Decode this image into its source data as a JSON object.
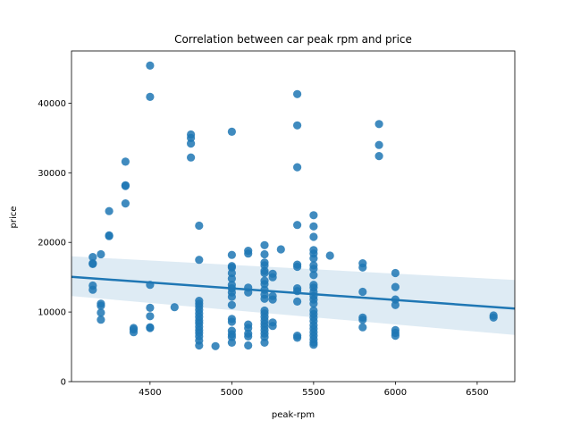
{
  "chart_data": {
    "type": "scatter",
    "title": "Correlation between car peak rpm and price",
    "xlabel": "peak-rpm",
    "ylabel": "price",
    "xlim": [
      4020,
      6730
    ],
    "ylim": [
      0,
      47500
    ],
    "xticks": [
      4500,
      5000,
      5500,
      6000,
      6500
    ],
    "yticks": [
      0,
      10000,
      20000,
      30000,
      40000
    ],
    "grid": false,
    "point_color": "#1f77b4",
    "points": [
      [
        4150,
        17900
      ],
      [
        4150,
        16900
      ],
      [
        4150,
        17000
      ],
      [
        4150,
        13800
      ],
      [
        4150,
        13200
      ],
      [
        4200,
        18300
      ],
      [
        4200,
        11200
      ],
      [
        4200,
        10900
      ],
      [
        4200,
        9900
      ],
      [
        4200,
        8900
      ],
      [
        4250,
        24500
      ],
      [
        4250,
        21000
      ],
      [
        4250,
        20900
      ],
      [
        4350,
        31600
      ],
      [
        4350,
        28200
      ],
      [
        4350,
        28100
      ],
      [
        4350,
        25600
      ],
      [
        4400,
        7700
      ],
      [
        4400,
        7500
      ],
      [
        4400,
        7100
      ],
      [
        4500,
        45400
      ],
      [
        4500,
        40900
      ],
      [
        4500,
        13900
      ],
      [
        4500,
        10600
      ],
      [
        4500,
        9400
      ],
      [
        4500,
        7800
      ],
      [
        4500,
        7700
      ],
      [
        4650,
        10700
      ],
      [
        4750,
        35500
      ],
      [
        4750,
        35000
      ],
      [
        4750,
        34200
      ],
      [
        4750,
        32200
      ],
      [
        4800,
        22400
      ],
      [
        4800,
        17500
      ],
      [
        4800,
        11600
      ],
      [
        4800,
        11200
      ],
      [
        4800,
        10800
      ],
      [
        4800,
        10300
      ],
      [
        4800,
        9800
      ],
      [
        4800,
        9300
      ],
      [
        4800,
        8800
      ],
      [
        4800,
        8400
      ],
      [
        4800,
        7900
      ],
      [
        4800,
        7400
      ],
      [
        4800,
        7000
      ],
      [
        4800,
        6500
      ],
      [
        4800,
        5900
      ],
      [
        4800,
        5200
      ],
      [
        4900,
        5100
      ],
      [
        5000,
        35900
      ],
      [
        5000,
        18200
      ],
      [
        5000,
        16600
      ],
      [
        5000,
        16400
      ],
      [
        5000,
        15600
      ],
      [
        5000,
        14800
      ],
      [
        5000,
        13900
      ],
      [
        5000,
        13400
      ],
      [
        5000,
        12800
      ],
      [
        5000,
        12200
      ],
      [
        5000,
        11000
      ],
      [
        5000,
        9000
      ],
      [
        5000,
        8600
      ],
      [
        5000,
        7300
      ],
      [
        5000,
        6800
      ],
      [
        5000,
        6400
      ],
      [
        5000,
        5600
      ],
      [
        5100,
        18800
      ],
      [
        5100,
        18400
      ],
      [
        5100,
        13500
      ],
      [
        5100,
        12800
      ],
      [
        5100,
        8200
      ],
      [
        5100,
        7700
      ],
      [
        5100,
        6900
      ],
      [
        5100,
        6500
      ],
      [
        5100,
        5200
      ],
      [
        5200,
        19600
      ],
      [
        5200,
        18300
      ],
      [
        5200,
        17100
      ],
      [
        5200,
        16700
      ],
      [
        5200,
        15900
      ],
      [
        5200,
        15600
      ],
      [
        5200,
        14500
      ],
      [
        5200,
        14000
      ],
      [
        5200,
        13200
      ],
      [
        5200,
        12500
      ],
      [
        5200,
        11900
      ],
      [
        5200,
        10200
      ],
      [
        5200,
        9800
      ],
      [
        5200,
        9300
      ],
      [
        5200,
        8800
      ],
      [
        5200,
        8300
      ],
      [
        5200,
        7900
      ],
      [
        5200,
        7400
      ],
      [
        5200,
        6900
      ],
      [
        5200,
        6400
      ],
      [
        5200,
        5600
      ],
      [
        5250,
        15500
      ],
      [
        5250,
        15000
      ],
      [
        5250,
        12300
      ],
      [
        5250,
        11800
      ],
      [
        5250,
        8500
      ],
      [
        5250,
        8000
      ],
      [
        5300,
        19000
      ],
      [
        5400,
        41300
      ],
      [
        5400,
        36800
      ],
      [
        5400,
        30800
      ],
      [
        5400,
        22500
      ],
      [
        5400,
        16800
      ],
      [
        5400,
        16500
      ],
      [
        5400,
        13400
      ],
      [
        5400,
        13000
      ],
      [
        5400,
        11500
      ],
      [
        5400,
        6600
      ],
      [
        5400,
        6300
      ],
      [
        5500,
        23900
      ],
      [
        5500,
        22300
      ],
      [
        5500,
        20800
      ],
      [
        5500,
        18900
      ],
      [
        5500,
        18400
      ],
      [
        5500,
        17700
      ],
      [
        5500,
        16700
      ],
      [
        5500,
        16200
      ],
      [
        5500,
        15300
      ],
      [
        5500,
        13900
      ],
      [
        5500,
        13500
      ],
      [
        5500,
        12900
      ],
      [
        5500,
        12300
      ],
      [
        5500,
        11800
      ],
      [
        5500,
        11200
      ],
      [
        5500,
        10200
      ],
      [
        5500,
        9700
      ],
      [
        5500,
        9200
      ],
      [
        5500,
        8700
      ],
      [
        5500,
        8100
      ],
      [
        5500,
        7600
      ],
      [
        5500,
        7100
      ],
      [
        5500,
        6600
      ],
      [
        5500,
        6100
      ],
      [
        5500,
        5600
      ],
      [
        5500,
        5300
      ],
      [
        5600,
        18100
      ],
      [
        5800,
        17000
      ],
      [
        5800,
        16400
      ],
      [
        5800,
        12900
      ],
      [
        5800,
        9200
      ],
      [
        5800,
        8900
      ],
      [
        5800,
        7800
      ],
      [
        5900,
        37000
      ],
      [
        5900,
        34000
      ],
      [
        5900,
        32400
      ],
      [
        6000,
        15600
      ],
      [
        6000,
        13600
      ],
      [
        6000,
        11800
      ],
      [
        6000,
        11000
      ],
      [
        6000,
        7400
      ],
      [
        6000,
        7000
      ],
      [
        6000,
        6600
      ],
      [
        6600,
        9500
      ],
      [
        6600,
        9200
      ]
    ],
    "regression": {
      "x": [
        4020,
        6730
      ],
      "y": [
        15050,
        10500
      ],
      "ci_upper": [
        18000,
        14600
      ],
      "ci_lower": [
        12300,
        6700
      ]
    }
  }
}
